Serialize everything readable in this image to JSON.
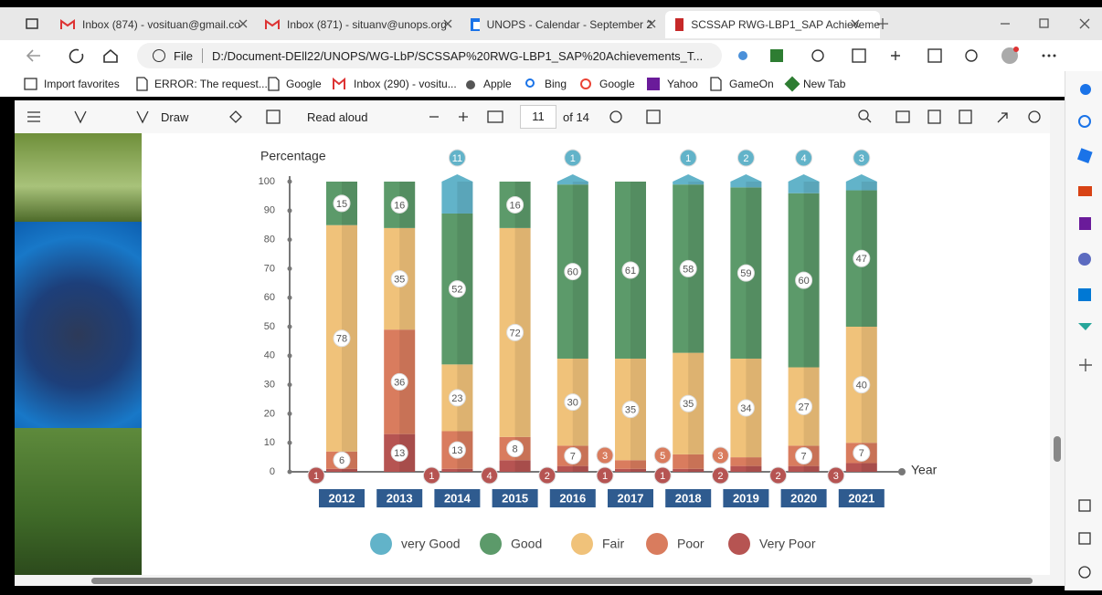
{
  "tabs": [
    "Inbox (874) - vosituan@gmail.co",
    "Inbox (871) - situanv@unops.org",
    "UNOPS - Calendar - September 2",
    "SCSSAP RWG-LBP1_SAP Achieveme"
  ],
  "address": {
    "scheme": "File",
    "url": "D:/Document-DEll22/UNOPS/WG-LbP/SCSSAP%20RWG-LBP1_SAP%20Achievements_T..."
  },
  "bookmarks": [
    "Import favorites",
    "ERROR: The request...",
    "Google",
    "Inbox (290) - vositu...",
    "Apple",
    "Bing",
    "Google",
    "Yahoo",
    "GameOn",
    "New Tab"
  ],
  "pdf_toolbar": {
    "draw": "Draw",
    "read_aloud": "Read aloud",
    "page": "11",
    "page_count": "of 14"
  },
  "chart_data": {
    "type": "stacked_bar",
    "y_label": "Percentage",
    "x_label": "Year",
    "categories": [
      "2012",
      "2013",
      "2014",
      "2015",
      "2016",
      "2017",
      "2018",
      "2019",
      "2020",
      "2021"
    ],
    "series": [
      {
        "name": "very Good",
        "color": "#62b3c9",
        "values": [
          null,
          null,
          11,
          null,
          1,
          null,
          1,
          2,
          4,
          3
        ]
      },
      {
        "name": "Good",
        "color": "#5c9a6a",
        "values": [
          15,
          16,
          52,
          16,
          60,
          61,
          58,
          59,
          60,
          47
        ]
      },
      {
        "name": "Fair",
        "color": "#f0c27a",
        "values": [
          78,
          35,
          23,
          72,
          30,
          35,
          35,
          34,
          27,
          40
        ]
      },
      {
        "name": "Poor",
        "color": "#d97c5e",
        "values": [
          6,
          36,
          13,
          8,
          7,
          3,
          5,
          3,
          7,
          7
        ]
      },
      {
        "name": "Very Poor",
        "color": "#b65452",
        "values": [
          1,
          13,
          1,
          4,
          2,
          1,
          1,
          2,
          2,
          3
        ]
      }
    ],
    "ylim": [
      0,
      100
    ],
    "yticks": [
      0,
      10,
      20,
      30,
      40,
      50,
      60,
      70,
      80,
      90,
      100
    ],
    "legend": "bottom"
  }
}
